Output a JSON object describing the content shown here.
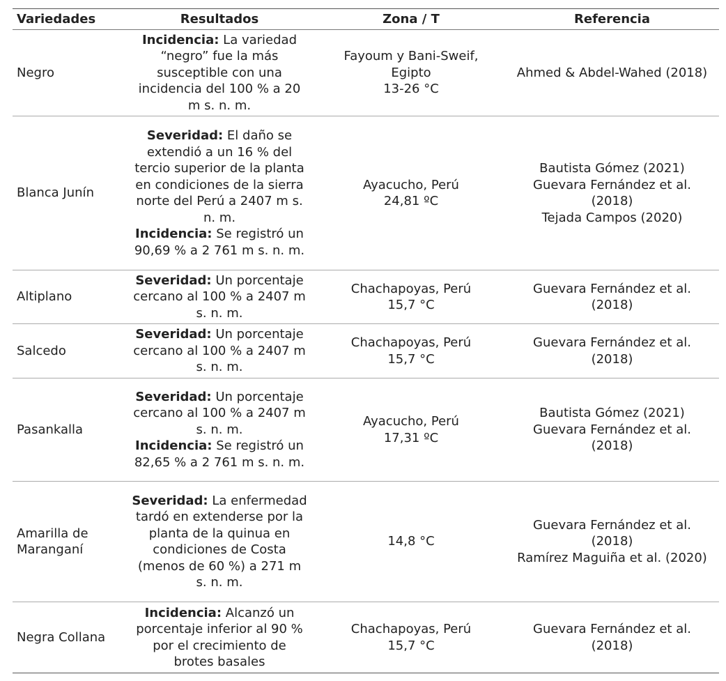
{
  "table": {
    "header": [
      "Variedades",
      "Resultados",
      "Zona / T",
      "Referencia"
    ],
    "rows": [
      {
        "variety": "Negro",
        "results": [
          {
            "label": "Incidencia:",
            "text": "La variedad “negro” fue la más susceptible con una incidencia del 100 % a 20 m s. n. m."
          }
        ],
        "zone": [
          "Fayoum y Bani-Sweif, Egipto",
          "13-26 °C"
        ],
        "refs": [
          "Ahmed & Abdel-Wahed (2018)"
        ]
      },
      {
        "variety": "Blanca Junín",
        "results": [
          {
            "label": "Severidad:",
            "text": "El daño se extendió a un 16 % del tercio superior de la planta en condiciones de la sierra norte del Perú a 2407 m s. n. m."
          },
          {
            "label": "Incidencia:",
            "text": "Se registró un 90,69 % a 2 761 m s. n. m."
          }
        ],
        "zone": [
          "Ayacucho, Perú",
          "24,81 ºC"
        ],
        "refs": [
          "Bautista Gómez (2021)",
          "Guevara Fernández et al. (2018)",
          "Tejada Campos (2020)"
        ]
      },
      {
        "variety": "Altiplano",
        "results": [
          {
            "label": "Severidad:",
            "text": "Un porcentaje cercano al 100 % a 2407 m s. n. m."
          }
        ],
        "zone": [
          "Chachapoyas, Perú",
          "15,7 °C"
        ],
        "refs": [
          "Guevara Fernández et al. (2018)"
        ]
      },
      {
        "variety": "Salcedo",
        "results": [
          {
            "label": "Severidad:",
            "text": "Un porcentaje cercano al 100 % a 2407 m s. n. m."
          }
        ],
        "zone": [
          "Chachapoyas, Perú",
          "15,7 °C"
        ],
        "refs": [
          "Guevara Fernández et al. (2018)"
        ]
      },
      {
        "variety": "Pasankalla",
        "results": [
          {
            "label": "Severidad:",
            "text": "Un porcentaje cercano al 100 % a 2407 m s. n. m."
          },
          {
            "label": "Incidencia:",
            "text": "Se registró un 82,65 % a 2 761 m s. n. m."
          }
        ],
        "zone": [
          "Ayacucho, Perú",
          "17,31 ºC"
        ],
        "refs": [
          "Bautista Gómez (2021)",
          "Guevara Fernández et al. (2018)"
        ]
      },
      {
        "variety": "Amarilla de Maranganí",
        "results": [
          {
            "label": "Severidad:",
            "text": "La enfermedad tardó en extenderse por la planta de la quinua en condiciones de Costa (menos de 60 %) a 271 m s. n. m."
          }
        ],
        "zone": [
          "14,8 °C"
        ],
        "refs": [
          "Guevara Fernández et al. (2018)",
          "Ramírez Maguiña et al. (2020)"
        ]
      },
      {
        "variety": "Negra Collana",
        "results": [
          {
            "label": "Incidencia:",
            "text": "Alcanzó un porcentaje inferior al 90 % por el crecimiento de brotes basales"
          }
        ],
        "zone": [
          "Chachapoyas, Perú",
          "15,7 °C"
        ],
        "refs": [
          "Guevara Fernández et al. (2018)"
        ]
      }
    ]
  }
}
